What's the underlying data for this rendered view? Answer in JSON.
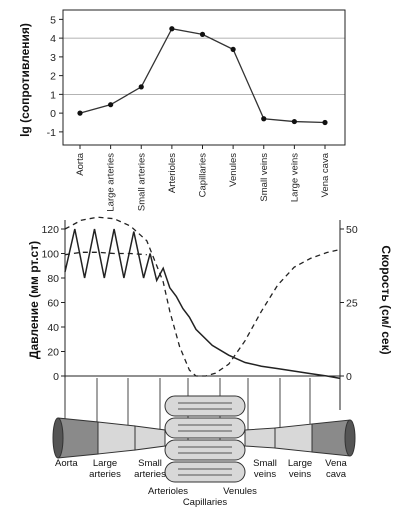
{
  "chart_data": [
    {
      "type": "line",
      "ylabel": "lg (сопротивления)",
      "categories": [
        "Aorta",
        "Large arteries",
        "Small arteries",
        "Arterioles",
        "Capillaries",
        "Venules",
        "Small veins",
        "Large veins",
        "Vena cava"
      ],
      "series": [
        {
          "values": [
            0,
            0.45,
            1.4,
            4.5,
            4.2,
            3.4,
            -0.3,
            -0.45,
            -0.5
          ]
        }
      ],
      "ylim": [
        -1.7,
        5.5
      ],
      "yticks": [
        "5",
        "4",
        "3",
        "2",
        "1",
        "0",
        "-1"
      ],
      "grid": "horizontal at 4 and 1",
      "colors": {
        "line": "#333333",
        "grid": "#9a9a9a"
      }
    },
    {
      "type": "line",
      "ylabel_left": "Давление (мм рт.ст)",
      "ylabel_right": "Скорость (см/ сек)",
      "yticks_left": [
        "120",
        "100",
        "80",
        "60",
        "40",
        "20",
        "0"
      ],
      "yticks_right": [
        "50",
        "25",
        "0"
      ],
      "ylim_left": [
        0,
        130
      ],
      "ylim_right": [
        0,
        55
      ],
      "series": [
        {
          "style": "solid",
          "axis": "left",
          "x": [
            0,
            0.3,
            0.6,
            0.9,
            1.2,
            1.5,
            1.8,
            2.1,
            2.4,
            2.6,
            2.8,
            3.0,
            3.2,
            3.4,
            3.6,
            3.8,
            4.0,
            4.5,
            5.0,
            5.5,
            6.0,
            6.5,
            7.0,
            7.5,
            8.0,
            8.4
          ],
          "y": [
            85,
            120,
            80,
            120,
            80,
            120,
            80,
            118,
            80,
            100,
            78,
            88,
            72,
            65,
            55,
            48,
            38,
            25,
            17,
            11,
            8,
            6,
            4,
            2,
            0,
            -2
          ]
        },
        {
          "style": "dashed",
          "axis": "right",
          "x": [
            0,
            0.5,
            1.0,
            1.5,
            2.0,
            2.5,
            3.0,
            3.2,
            3.5,
            3.8,
            4.0,
            4.3,
            4.6,
            5.0,
            5.5,
            6.0,
            6.5,
            7.0,
            7.5,
            8.0,
            8.4
          ],
          "y": [
            50,
            53,
            54,
            53.5,
            51,
            46,
            32,
            22,
            10,
            2,
            0,
            0,
            1,
            4,
            12,
            22,
            31,
            37,
            40,
            42,
            43
          ]
        },
        {
          "style": "dashed",
          "axis": "left",
          "x": [
            0,
            0.5,
            1.0,
            1.5,
            2.0,
            2.5
          ],
          "y": [
            99,
            101,
            101,
            100,
            100,
            99
          ]
        }
      ],
      "colors": {
        "line": "#222222"
      }
    }
  ],
  "anatomy_labels": [
    {
      "id": "aorta",
      "text": "Aorta"
    },
    {
      "id": "large-arteries-1",
      "text": "Large"
    },
    {
      "id": "large-arteries-2",
      "text": "arteries"
    },
    {
      "id": "small-arteries-1",
      "text": "Small"
    },
    {
      "id": "small-arteries-2",
      "text": "arteries"
    },
    {
      "id": "arterioles",
      "text": "Arterioles"
    },
    {
      "id": "capillaries",
      "text": "Capillaries"
    },
    {
      "id": "venules",
      "text": "Venules"
    },
    {
      "id": "small-veins-1",
      "text": "Small"
    },
    {
      "id": "small-veins-2",
      "text": "veins"
    },
    {
      "id": "large-veins-1",
      "text": "Large"
    },
    {
      "id": "large-veins-2",
      "text": "veins"
    },
    {
      "id": "vena-cava-1",
      "text": "Vena"
    },
    {
      "id": "vena-cava-2",
      "text": "cava"
    }
  ]
}
